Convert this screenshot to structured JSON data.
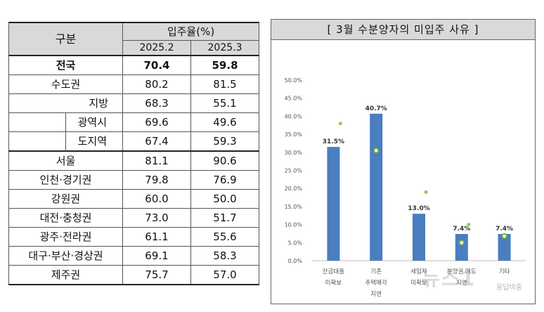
{
  "table": {
    "header_group": "구분",
    "header_metric": "입주율(%)",
    "periods": [
      "2025.2",
      "2025.3"
    ],
    "rows": [
      {
        "region": "전국",
        "v1": "70.4",
        "v2": "59.8"
      },
      {
        "region": "수도권",
        "v1": "80.2",
        "v2": "81.5"
      },
      {
        "region": "지방",
        "v1": "68.3",
        "v2": "55.1"
      },
      {
        "region": "광역시",
        "v1": "69.6",
        "v2": "49.6"
      },
      {
        "region": "도지역",
        "v1": "67.4",
        "v2": "59.3"
      },
      {
        "region": "서울",
        "v1": "81.1",
        "v2": "90.6"
      },
      {
        "region": "인천·경기권",
        "v1": "79.8",
        "v2": "76.9"
      },
      {
        "region": "강원권",
        "v1": "60.0",
        "v2": "50.0"
      },
      {
        "region": "대전·충청권",
        "v1": "73.0",
        "v2": "51.7"
      },
      {
        "region": "광주·전라권",
        "v1": "61.1",
        "v2": "55.6"
      },
      {
        "region": "대구·부산·경상권",
        "v1": "69.1",
        "v2": "58.3"
      },
      {
        "region": "제주권",
        "v1": "75.7",
        "v2": "57.0"
      }
    ]
  },
  "chart_data": {
    "type": "bar",
    "title": "[ 3월 수분양자의 미입주 사유 ]",
    "categories": [
      [
        "잔금대출",
        "미확보"
      ],
      [
        "기존",
        "주택매각",
        "지연"
      ],
      [
        "세입자",
        "미확보"
      ],
      [
        "분양권 매도",
        "지연"
      ],
      [
        "기타"
      ]
    ],
    "series": [
      {
        "values": [
          31.5,
          40.7,
          13.0,
          7.4,
          7.4
        ],
        "labels": [
          "31.5%",
          "40.7%",
          "13.0%",
          "7.4%",
          "7.4%"
        ]
      }
    ],
    "markers_light_green": [
      38.0,
      null,
      19.0,
      10.0,
      null
    ],
    "markers_green_ring": [
      null,
      30.5,
      null,
      5.0,
      6.8
    ],
    "ylim": [
      0,
      50
    ],
    "yticks": [
      "0.0%",
      "5.0%",
      "10.0%",
      "15.0%",
      "20.0%",
      "25.0%",
      "30.0%",
      "35.0%",
      "40.0%",
      "45.0%",
      "50.0%"
    ],
    "grid": false,
    "colors": {
      "bar": "#4a7ebf",
      "marker_light": "#92d050",
      "marker_ring": "#70ad47"
    }
  },
  "watermark": {
    "text": "뉴스1",
    "sub": "응답비중"
  }
}
